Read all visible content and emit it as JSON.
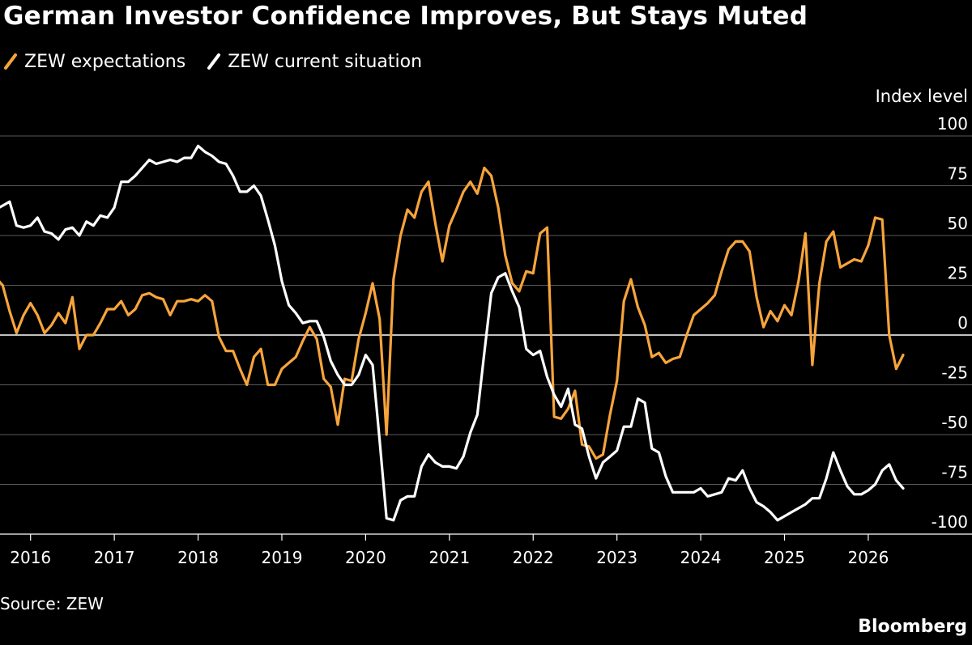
{
  "title": "German Investor Confidence Improves, But Stays Muted",
  "source": "Source: ZEW",
  "brand": "Bloomberg",
  "colors": {
    "background": "#000000",
    "expectations": "#f7a43b",
    "current": "#ffffff",
    "grid": "#5a5a5a",
    "text": "#ffffff"
  },
  "chart_data": {
    "type": "line",
    "title": "German Investor Confidence Improves, But Stays Muted",
    "ylabel": "Index level",
    "ylim": [
      -100,
      100
    ],
    "yticks": [
      100,
      75,
      50,
      25,
      0,
      -25,
      -50,
      -75,
      -100
    ],
    "ytick_labels": [
      "100",
      "75",
      "50",
      "25",
      "0",
      "-25",
      "-50",
      "-75",
      "-100"
    ],
    "xticks": [
      2016,
      2017,
      2018,
      2019,
      2020,
      2021,
      2022,
      2023,
      2024,
      2025,
      2026
    ],
    "xtick_labels": [
      "2016",
      "2017",
      "2018",
      "2019",
      "2020",
      "2021",
      "2022",
      "2023",
      "2024",
      "2025",
      "2026"
    ],
    "xlim": [
      2015.5,
      2026.9
    ],
    "legend_position": "top-left",
    "grid": true,
    "series": [
      {
        "name": "ZEW expectations",
        "color": "#f7a43b",
        "points": [
          [
            2015.583,
            29
          ],
          [
            2015.667,
            25
          ],
          [
            2015.75,
            12
          ],
          [
            2015.833,
            1
          ],
          [
            2015.917,
            10
          ],
          [
            2016.0,
            16
          ],
          [
            2016.083,
            10
          ],
          [
            2016.167,
            1
          ],
          [
            2016.25,
            5
          ],
          [
            2016.333,
            11
          ],
          [
            2016.417,
            6
          ],
          [
            2016.5,
            19
          ],
          [
            2016.583,
            -7
          ],
          [
            2016.667,
            0
          ],
          [
            2016.75,
            0
          ],
          [
            2016.833,
            6
          ],
          [
            2016.917,
            13
          ],
          [
            2017.0,
            13
          ],
          [
            2017.083,
            17
          ],
          [
            2017.167,
            10
          ],
          [
            2017.25,
            13
          ],
          [
            2017.333,
            20
          ],
          [
            2017.417,
            21
          ],
          [
            2017.5,
            19
          ],
          [
            2017.583,
            18
          ],
          [
            2017.667,
            10
          ],
          [
            2017.75,
            17
          ],
          [
            2017.833,
            17
          ],
          [
            2017.917,
            18
          ],
          [
            2018.0,
            17
          ],
          [
            2018.083,
            20
          ],
          [
            2018.167,
            17
          ],
          [
            2018.25,
            -1
          ],
          [
            2018.333,
            -8
          ],
          [
            2018.417,
            -8
          ],
          [
            2018.5,
            -17
          ],
          [
            2018.583,
            -25
          ],
          [
            2018.667,
            -11
          ],
          [
            2018.75,
            -7
          ],
          [
            2018.833,
            -25
          ],
          [
            2018.917,
            -25
          ],
          [
            2019.0,
            -17
          ],
          [
            2019.083,
            -14
          ],
          [
            2019.167,
            -11
          ],
          [
            2019.25,
            -3
          ],
          [
            2019.333,
            4
          ],
          [
            2019.417,
            -2
          ],
          [
            2019.5,
            -22
          ],
          [
            2019.583,
            -26
          ],
          [
            2019.667,
            -45
          ],
          [
            2019.75,
            -22
          ],
          [
            2019.833,
            -23
          ],
          [
            2019.917,
            -2
          ],
          [
            2020.0,
            11
          ],
          [
            2020.083,
            26
          ],
          [
            2020.167,
            8
          ],
          [
            2020.25,
            -50
          ],
          [
            2020.333,
            28
          ],
          [
            2020.417,
            50
          ],
          [
            2020.5,
            63
          ],
          [
            2020.583,
            59
          ],
          [
            2020.667,
            72
          ],
          [
            2020.75,
            77
          ],
          [
            2020.833,
            56
          ],
          [
            2020.917,
            37
          ],
          [
            2021.0,
            55
          ],
          [
            2021.083,
            63
          ],
          [
            2021.167,
            72
          ],
          [
            2021.25,
            77
          ],
          [
            2021.333,
            71
          ],
          [
            2021.417,
            84
          ],
          [
            2021.5,
            80
          ],
          [
            2021.583,
            64
          ],
          [
            2021.667,
            40
          ],
          [
            2021.75,
            26
          ],
          [
            2021.833,
            22
          ],
          [
            2021.917,
            32
          ],
          [
            2022.0,
            31
          ],
          [
            2022.083,
            51
          ],
          [
            2022.167,
            54
          ],
          [
            2022.25,
            -41
          ],
          [
            2022.333,
            -42
          ],
          [
            2022.417,
            -37
          ],
          [
            2022.5,
            -28
          ],
          [
            2022.583,
            -55
          ],
          [
            2022.667,
            -56
          ],
          [
            2022.75,
            -62
          ],
          [
            2022.833,
            -60
          ],
          [
            2022.917,
            -40
          ],
          [
            2023.0,
            -23
          ],
          [
            2023.083,
            17
          ],
          [
            2023.167,
            28
          ],
          [
            2023.25,
            14
          ],
          [
            2023.333,
            5
          ],
          [
            2023.417,
            -11
          ],
          [
            2023.5,
            -9
          ],
          [
            2023.583,
            -14
          ],
          [
            2023.667,
            -12
          ],
          [
            2023.75,
            -11
          ],
          [
            2023.833,
            0
          ],
          [
            2023.917,
            10
          ],
          [
            2024.0,
            13
          ],
          [
            2024.083,
            16
          ],
          [
            2024.167,
            20
          ],
          [
            2024.25,
            32
          ],
          [
            2024.333,
            43
          ],
          [
            2024.417,
            47
          ],
          [
            2024.5,
            47
          ],
          [
            2024.583,
            42
          ],
          [
            2024.667,
            19
          ],
          [
            2024.75,
            4
          ],
          [
            2024.833,
            12
          ],
          [
            2024.917,
            7
          ],
          [
            2025.0,
            15
          ],
          [
            2025.083,
            10
          ],
          [
            2025.167,
            27
          ],
          [
            2025.25,
            51
          ],
          [
            2025.333,
            -15
          ],
          [
            2025.417,
            26
          ],
          [
            2025.5,
            47
          ],
          [
            2025.583,
            52
          ],
          [
            2025.667,
            34
          ],
          [
            2025.75,
            36
          ],
          [
            2025.833,
            38
          ],
          [
            2025.917,
            37
          ],
          [
            2026.0,
            45
          ],
          [
            2026.083,
            59
          ],
          [
            2026.167,
            58
          ],
          [
            2026.25,
            0
          ],
          [
            2026.333,
            -17
          ],
          [
            2026.417,
            -10
          ]
        ]
      },
      {
        "name": "ZEW current situation",
        "color": "#ffffff",
        "points": [
          [
            2015.583,
            63
          ],
          [
            2015.667,
            65
          ],
          [
            2015.75,
            67
          ],
          [
            2015.833,
            55
          ],
          [
            2015.917,
            54
          ],
          [
            2016.0,
            55
          ],
          [
            2016.083,
            59
          ],
          [
            2016.167,
            52
          ],
          [
            2016.25,
            51
          ],
          [
            2016.333,
            48
          ],
          [
            2016.417,
            53
          ],
          [
            2016.5,
            54
          ],
          [
            2016.583,
            50
          ],
          [
            2016.667,
            57
          ],
          [
            2016.75,
            55
          ],
          [
            2016.833,
            60
          ],
          [
            2016.917,
            59
          ],
          [
            2017.0,
            64
          ],
          [
            2017.083,
            77
          ],
          [
            2017.167,
            77
          ],
          [
            2017.25,
            80
          ],
          [
            2017.333,
            84
          ],
          [
            2017.417,
            88
          ],
          [
            2017.5,
            86
          ],
          [
            2017.583,
            87
          ],
          [
            2017.667,
            88
          ],
          [
            2017.75,
            87
          ],
          [
            2017.833,
            89
          ],
          [
            2017.917,
            89
          ],
          [
            2018.0,
            95
          ],
          [
            2018.083,
            92
          ],
          [
            2018.167,
            90
          ],
          [
            2018.25,
            87
          ],
          [
            2018.333,
            86
          ],
          [
            2018.417,
            80
          ],
          [
            2018.5,
            72
          ],
          [
            2018.583,
            72
          ],
          [
            2018.667,
            75
          ],
          [
            2018.75,
            70
          ],
          [
            2018.833,
            58
          ],
          [
            2018.917,
            45
          ],
          [
            2019.0,
            27
          ],
          [
            2019.083,
            15
          ],
          [
            2019.167,
            11
          ],
          [
            2019.25,
            6
          ],
          [
            2019.333,
            7
          ],
          [
            2019.417,
            7
          ],
          [
            2019.5,
            -1
          ],
          [
            2019.583,
            -13
          ],
          [
            2019.667,
            -20
          ],
          [
            2019.75,
            -25
          ],
          [
            2019.833,
            -25
          ],
          [
            2019.917,
            -20
          ],
          [
            2020.0,
            -10
          ],
          [
            2020.083,
            -15
          ],
          [
            2020.167,
            -53
          ],
          [
            2020.25,
            -92
          ],
          [
            2020.333,
            -93
          ],
          [
            2020.417,
            -83
          ],
          [
            2020.5,
            -81
          ],
          [
            2020.583,
            -81
          ],
          [
            2020.667,
            -66
          ],
          [
            2020.75,
            -60
          ],
          [
            2020.833,
            -64
          ],
          [
            2020.917,
            -66
          ],
          [
            2021.0,
            -66
          ],
          [
            2021.083,
            -67
          ],
          [
            2021.167,
            -61
          ],
          [
            2021.25,
            -49
          ],
          [
            2021.333,
            -40
          ],
          [
            2021.417,
            -9
          ],
          [
            2021.5,
            21
          ],
          [
            2021.583,
            29
          ],
          [
            2021.667,
            31
          ],
          [
            2021.75,
            22
          ],
          [
            2021.833,
            14
          ],
          [
            2021.917,
            -7
          ],
          [
            2022.0,
            -10
          ],
          [
            2022.083,
            -8
          ],
          [
            2022.167,
            -21
          ],
          [
            2022.25,
            -30
          ],
          [
            2022.333,
            -36
          ],
          [
            2022.417,
            -27
          ],
          [
            2022.5,
            -45
          ],
          [
            2022.583,
            -47
          ],
          [
            2022.667,
            -61
          ],
          [
            2022.75,
            -72
          ],
          [
            2022.833,
            -64
          ],
          [
            2022.917,
            -61
          ],
          [
            2023.0,
            -58
          ],
          [
            2023.083,
            -46
          ],
          [
            2023.167,
            -46
          ],
          [
            2023.25,
            -32
          ],
          [
            2023.333,
            -34
          ],
          [
            2023.417,
            -57
          ],
          [
            2023.5,
            -59
          ],
          [
            2023.583,
            -71
          ],
          [
            2023.667,
            -79
          ],
          [
            2023.75,
            -79
          ],
          [
            2023.833,
            -79
          ],
          [
            2023.917,
            -79
          ],
          [
            2024.0,
            -77
          ],
          [
            2024.083,
            -81
          ],
          [
            2024.167,
            -80
          ],
          [
            2024.25,
            -79
          ],
          [
            2024.333,
            -72
          ],
          [
            2024.417,
            -73
          ],
          [
            2024.5,
            -68
          ],
          [
            2024.583,
            -77
          ],
          [
            2024.667,
            -84
          ],
          [
            2024.75,
            -86
          ],
          [
            2024.833,
            -89
          ],
          [
            2024.917,
            -93
          ],
          [
            2025.0,
            -91
          ],
          [
            2025.083,
            -89
          ],
          [
            2025.167,
            -87
          ],
          [
            2025.25,
            -85
          ],
          [
            2025.333,
            -82
          ],
          [
            2025.417,
            -82
          ],
          [
            2025.5,
            -72
          ],
          [
            2025.583,
            -59
          ],
          [
            2025.667,
            -68
          ],
          [
            2025.75,
            -76
          ],
          [
            2025.833,
            -80
          ],
          [
            2025.917,
            -80
          ],
          [
            2026.0,
            -78
          ],
          [
            2026.083,
            -75
          ],
          [
            2026.167,
            -68
          ],
          [
            2026.25,
            -65
          ],
          [
            2026.333,
            -73
          ],
          [
            2026.417,
            -77
          ]
        ]
      }
    ]
  }
}
